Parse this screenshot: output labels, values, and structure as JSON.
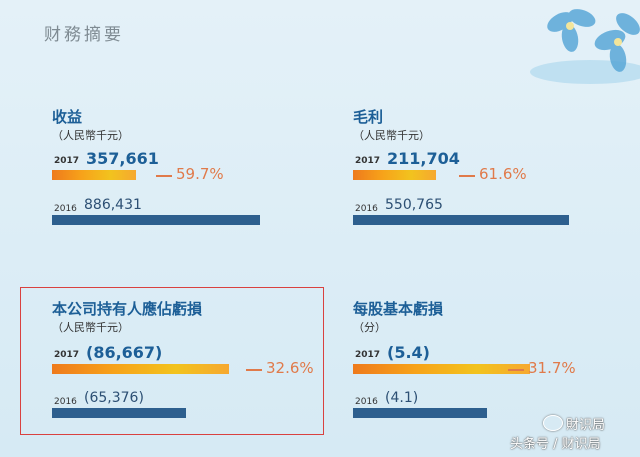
{
  "page_title": "财務摘要",
  "chart_data": [
    {
      "type": "bar",
      "title": "收益",
      "unit": "（人民幣千元）",
      "categories": [
        "2017",
        "2016"
      ],
      "values": [
        357661,
        886431
      ],
      "labels": [
        "357,661",
        "886,431"
      ],
      "change": "59.7%"
    },
    {
      "type": "bar",
      "title": "毛利",
      "unit": "（人民幣千元）",
      "categories": [
        "2017",
        "2016"
      ],
      "values": [
        211704,
        550765
      ],
      "labels": [
        "211,704",
        "550,765"
      ],
      "change": "61.6%"
    },
    {
      "type": "bar",
      "title": "本公司持有人應佔虧損",
      "unit": "（人民幣千元）",
      "categories": [
        "2017",
        "2016"
      ],
      "values": [
        -86667,
        -65376
      ],
      "labels": [
        "(86,667)",
        "(65,376)"
      ],
      "change": "32.6%"
    },
    {
      "type": "bar",
      "title": "每股基本虧損",
      "unit": "（分）",
      "categories": [
        "2017",
        "2016"
      ],
      "values": [
        -5.4,
        -4.1
      ],
      "labels": [
        "(5.4)",
        "(4.1)"
      ],
      "change": "31.7%"
    }
  ],
  "watermark": {
    "line1": "財识局",
    "line2": "头条号 / 财识局"
  }
}
